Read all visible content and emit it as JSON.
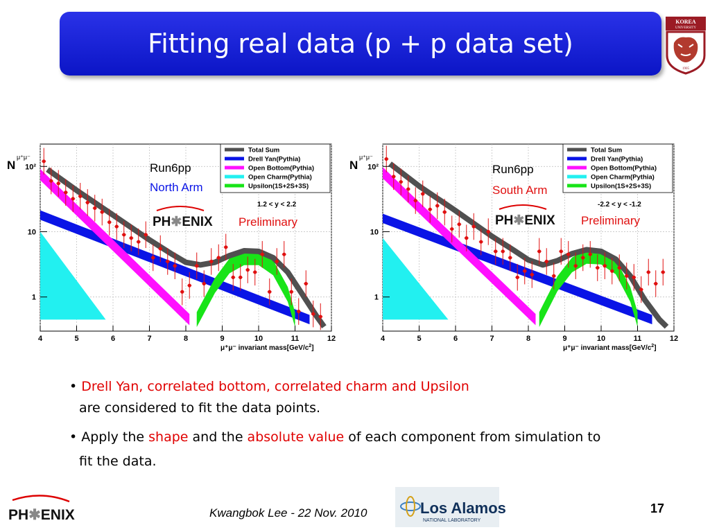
{
  "slide": {
    "title": "Fitting real data (p + p data set)",
    "page_number": "17",
    "footer_text": "Kwangbok Lee - 22 Nov. 2010",
    "logo_text": {
      "korea": "KOREA",
      "university": "UNIVERSITY",
      "year": "1905",
      "lanl": "Los Alamos",
      "lanl_sub": "NATIONAL LABORATORY",
      "phenix": "PHENIX"
    }
  },
  "bullets": {
    "b1_red": "Drell Yan, correlated bottom, correlated charm and Upsilon",
    "b1_rest": "are considered to fit the data points.",
    "b2_a": "Apply the ",
    "b2_shape": "shape",
    "b2_b": " and the ",
    "b2_abs": "absolute value",
    "b2_c": " of each component from simulation to",
    "b2_rest": "fit the data."
  },
  "colors": {
    "total": "#505050",
    "dy": "#0a14e6",
    "ob": "#ff10ff",
    "oc": "#22f0f0",
    "ups": "#18e418",
    "data": "#e01010",
    "title_blue": "#0b15c6"
  },
  "chart_data": [
    {
      "type": "scatter",
      "run_label": "Run6pp",
      "arm_label": "North Arm",
      "arm_color": "#0a14e6",
      "rapidity": "1.2  < y < 2.2",
      "preliminary": "Preliminary",
      "phenix": "PHENIX",
      "ylabel": "N",
      "xlabel": "invariant mass[GeV/c",
      "xlabel_prefix": "μ⁺μ⁻",
      "xlim": [
        4,
        12
      ],
      "ylim": [
        0.3,
        220
      ],
      "yscale": "log",
      "x_ticks": [
        "4",
        "5",
        "6",
        "7",
        "8",
        "9",
        "10",
        "11",
        "12"
      ],
      "y_ticks": [
        {
          "v": 1,
          "label": "1"
        },
        {
          "v": 10,
          "label": "10"
        },
        {
          "v": 100,
          "label": "10²"
        }
      ],
      "legend": [
        "Total Sum",
        "Drell Yan(Pythia)",
        "Open Bottom(Pythia)",
        "Open Charm(Pythia)",
        "Upsilon(1S+2S+3S)"
      ],
      "series": [
        {
          "name": "Total Sum",
          "x": [
            4.2,
            5,
            6,
            7,
            7.6,
            8,
            8.4,
            8.8,
            9.2,
            9.6,
            10,
            10.4,
            10.8,
            11.2,
            11.6,
            11.8
          ],
          "y": [
            90,
            43,
            18,
            7.5,
            4.6,
            3.4,
            3.1,
            3.4,
            4.3,
            5.1,
            5,
            4,
            2.4,
            1.1,
            0.5,
            0.35
          ]
        },
        {
          "name": "Drell Yan(Pythia)",
          "x": [
            4,
            11.4
          ],
          "y": [
            18,
            0.45
          ],
          "band": 0.18
        },
        {
          "name": "Open Bottom(Pythia)",
          "x": [
            4,
            8.1
          ],
          "y": [
            75,
            0.45
          ],
          "band": 0.22
        },
        {
          "name": "Open Charm(Pythia)",
          "x": [
            4,
            5.8
          ],
          "y": [
            10,
            0.45
          ]
        },
        {
          "name": "Upsilon(1S+2S+3S)",
          "x": [
            8.3,
            8.8,
            9.2,
            9.6,
            10,
            10.4,
            10.8,
            11.0
          ],
          "y": [
            0.45,
            1.5,
            3.0,
            4.0,
            4.0,
            2.8,
            1.1,
            0.45
          ],
          "band": 0.3
        },
        {
          "name": "data",
          "x": [
            4.1,
            4.3,
            4.5,
            4.7,
            4.9,
            5.1,
            5.3,
            5.5,
            5.7,
            5.9,
            6.1,
            6.3,
            6.5,
            6.7,
            6.9,
            7.1,
            7.3,
            7.5,
            7.7,
            7.9,
            8.1,
            8.3,
            8.5,
            8.7,
            8.9,
            9.1,
            9.3,
            9.5,
            9.7,
            9.9,
            10.1,
            10.3,
            10.5,
            10.7,
            10.9,
            11.1,
            11.3,
            11.5,
            11.7
          ],
          "y": [
            120,
            60,
            55,
            40,
            32,
            35,
            28,
            23,
            20,
            14,
            12,
            9,
            8,
            7,
            9,
            4,
            5.5,
            3.5,
            3,
            1.2,
            1.5,
            3,
            1.6,
            3.5,
            4,
            5.8,
            2,
            2,
            2.6,
            2.4,
            4.5,
            1.2,
            3.5,
            4.5,
            1.2,
            0.6,
            1.6,
            0.55,
            0.5
          ]
        }
      ]
    },
    {
      "type": "scatter",
      "run_label": "Run6pp",
      "arm_label": "South Arm",
      "arm_color": "#e01010",
      "rapidity": "-2.2 < y < -1.2",
      "preliminary": "Preliminary",
      "phenix": "PHENIX",
      "ylabel": "N",
      "xlabel": "invariant mass[GeV/c",
      "xlabel_prefix": "μ⁺μ⁻",
      "xlim": [
        4,
        12
      ],
      "ylim": [
        0.3,
        220
      ],
      "yscale": "log",
      "x_ticks": [
        "4",
        "5",
        "6",
        "7",
        "8",
        "9",
        "10",
        "11",
        "12"
      ],
      "y_ticks": [
        {
          "v": 1,
          "label": "1"
        },
        {
          "v": 10,
          "label": "10"
        },
        {
          "v": 100,
          "label": "10²"
        }
      ],
      "legend": [
        "Total Sum",
        "Drell Yan(Pythia)",
        "Open Bottom(Pythia)",
        "Open Charm(Pythia)",
        "Upsilon(1S+2S+3S)"
      ],
      "series": [
        {
          "name": "Total Sum",
          "x": [
            4.2,
            5,
            6,
            7,
            7.6,
            8,
            8.4,
            8.8,
            9.2,
            9.6,
            10,
            10.4,
            10.8,
            11.2,
            11.6,
            11.8
          ],
          "y": [
            110,
            50,
            21,
            8.5,
            5.2,
            3.7,
            3.1,
            3.6,
            4.6,
            5.3,
            5,
            3.8,
            2.1,
            0.9,
            0.45,
            0.35
          ]
        },
        {
          "name": "Drell Yan(Pythia)",
          "x": [
            4,
            11.4
          ],
          "y": [
            16,
            0.45
          ],
          "band": 0.18
        },
        {
          "name": "Open Bottom(Pythia)",
          "x": [
            4,
            8.2
          ],
          "y": [
            80,
            0.45
          ],
          "band": 0.22
        },
        {
          "name": "Open Charm(Pythia)",
          "x": [
            4,
            5.8
          ],
          "y": [
            8,
            0.45
          ]
        },
        {
          "name": "Upsilon(1S+2S+3S)",
          "x": [
            8.3,
            8.8,
            9.2,
            9.6,
            10,
            10.4,
            10.8,
            11.0
          ],
          "y": [
            0.45,
            1.6,
            3.1,
            4.2,
            4.1,
            2.9,
            1.1,
            0.45
          ],
          "band": 0.3
        },
        {
          "name": "data",
          "x": [
            4.1,
            4.3,
            4.5,
            4.7,
            4.9,
            5.1,
            5.3,
            5.5,
            5.7,
            5.9,
            6.1,
            6.3,
            6.5,
            6.7,
            6.9,
            7.1,
            7.3,
            7.5,
            7.7,
            7.9,
            8.1,
            8.3,
            8.5,
            8.7,
            8.9,
            9.1,
            9.3,
            9.5,
            9.7,
            9.9,
            10.1,
            10.3,
            10.5,
            10.7,
            10.9,
            11.1,
            11.3,
            11.5,
            11.7
          ],
          "y": [
            130,
            70,
            58,
            45,
            30,
            38,
            22,
            25,
            20,
            11,
            13,
            8,
            12,
            7,
            10,
            5,
            5,
            4,
            2,
            2.5,
            2.2,
            5,
            3.5,
            2.1,
            5,
            4.5,
            3,
            4,
            4.5,
            2.8,
            3,
            2.5,
            2.8,
            2.1,
            2,
            1.3,
            2.4,
            1.6,
            2.4
          ]
        }
      ]
    }
  ]
}
